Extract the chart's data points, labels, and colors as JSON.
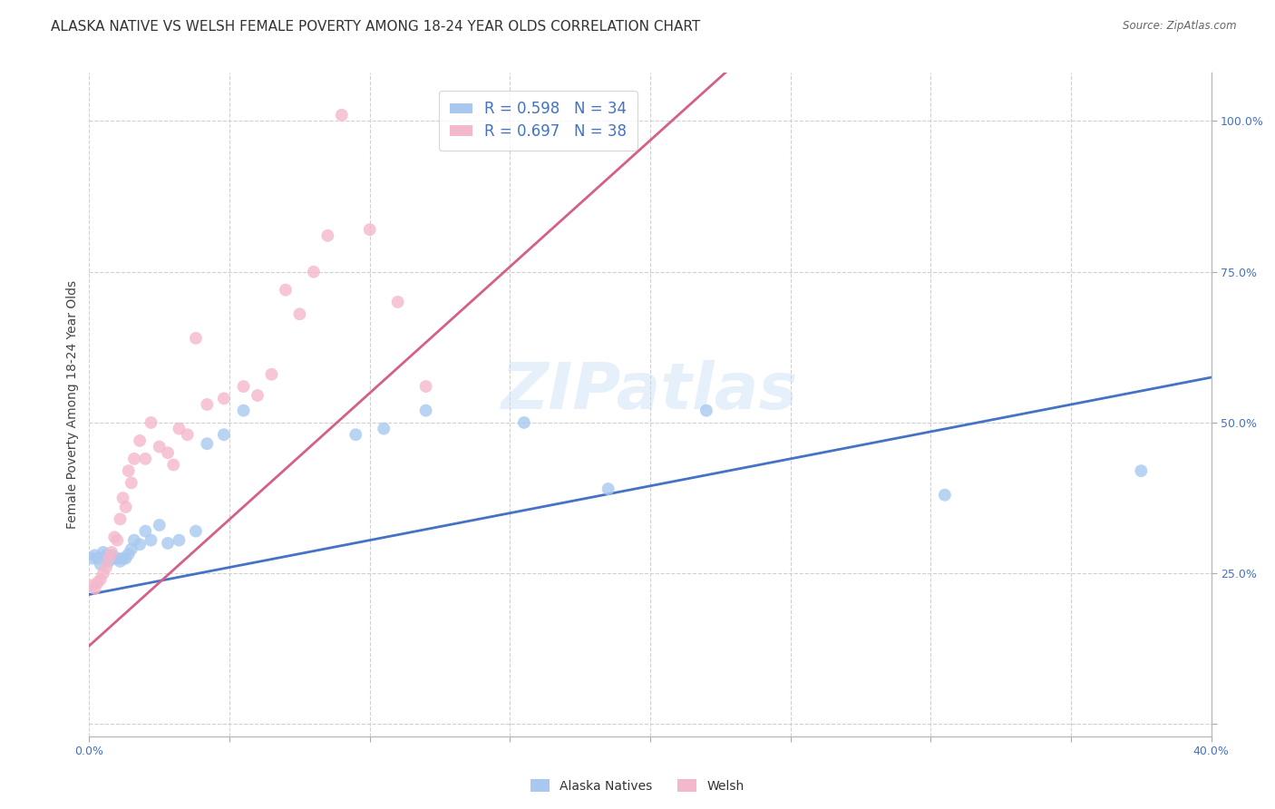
{
  "title": "ALASKA NATIVE VS WELSH FEMALE POVERTY AMONG 18-24 YEAR OLDS CORRELATION CHART",
  "source": "Source: ZipAtlas.com",
  "ylabel": "Female Poverty Among 18-24 Year Olds",
  "xlim": [
    0.0,
    0.4
  ],
  "ylim": [
    -0.02,
    1.08
  ],
  "alaska_color": "#a8c8f0",
  "welsh_color": "#f4b8cc",
  "alaska_line_color": "#4472c4",
  "welsh_line_color": "#d45f8a",
  "r_alaska": 0.598,
  "n_alaska": 34,
  "r_welsh": 0.697,
  "n_welsh": 38,
  "alaska_x": [
    0.001,
    0.002,
    0.003,
    0.004,
    0.005,
    0.006,
    0.007,
    0.008,
    0.009,
    0.01,
    0.011,
    0.012,
    0.013,
    0.014,
    0.015,
    0.016,
    0.018,
    0.02,
    0.022,
    0.025,
    0.028,
    0.032,
    0.038,
    0.042,
    0.048,
    0.055,
    0.095,
    0.105,
    0.12,
    0.155,
    0.185,
    0.22,
    0.305,
    0.375
  ],
  "alaska_y": [
    0.275,
    0.28,
    0.275,
    0.265,
    0.285,
    0.28,
    0.27,
    0.28,
    0.275,
    0.275,
    0.27,
    0.275,
    0.275,
    0.282,
    0.29,
    0.305,
    0.298,
    0.32,
    0.305,
    0.33,
    0.3,
    0.305,
    0.32,
    0.465,
    0.48,
    0.52,
    0.48,
    0.49,
    0.52,
    0.5,
    0.39,
    0.52,
    0.38,
    0.42
  ],
  "welsh_x": [
    0.001,
    0.002,
    0.003,
    0.004,
    0.005,
    0.006,
    0.007,
    0.008,
    0.009,
    0.01,
    0.011,
    0.012,
    0.013,
    0.014,
    0.015,
    0.016,
    0.018,
    0.02,
    0.022,
    0.025,
    0.028,
    0.03,
    0.032,
    0.035,
    0.038,
    0.042,
    0.048,
    0.055,
    0.06,
    0.065,
    0.07,
    0.075,
    0.08,
    0.085,
    0.09,
    0.1,
    0.11,
    0.12
  ],
  "welsh_y": [
    0.23,
    0.225,
    0.235,
    0.24,
    0.25,
    0.26,
    0.275,
    0.285,
    0.31,
    0.305,
    0.34,
    0.375,
    0.36,
    0.42,
    0.4,
    0.44,
    0.47,
    0.44,
    0.5,
    0.46,
    0.45,
    0.43,
    0.49,
    0.48,
    0.64,
    0.53,
    0.54,
    0.56,
    0.545,
    0.58,
    0.72,
    0.68,
    0.75,
    0.81,
    1.01,
    0.82,
    0.7,
    0.56
  ],
  "watermark_text": "ZIPatlas",
  "bg_color": "#ffffff",
  "grid_color": "#d0d0d0",
  "title_fontsize": 11,
  "axis_label_fontsize": 10,
  "tick_fontsize": 9,
  "ytick_positions": [
    0.0,
    0.25,
    0.5,
    0.75,
    1.0
  ],
  "ytick_labels": [
    "",
    "25.0%",
    "50.0%",
    "75.0%",
    "100.0%"
  ],
  "xtick_positions": [
    0.0,
    0.05,
    0.1,
    0.15,
    0.2,
    0.25,
    0.3,
    0.35,
    0.4
  ]
}
